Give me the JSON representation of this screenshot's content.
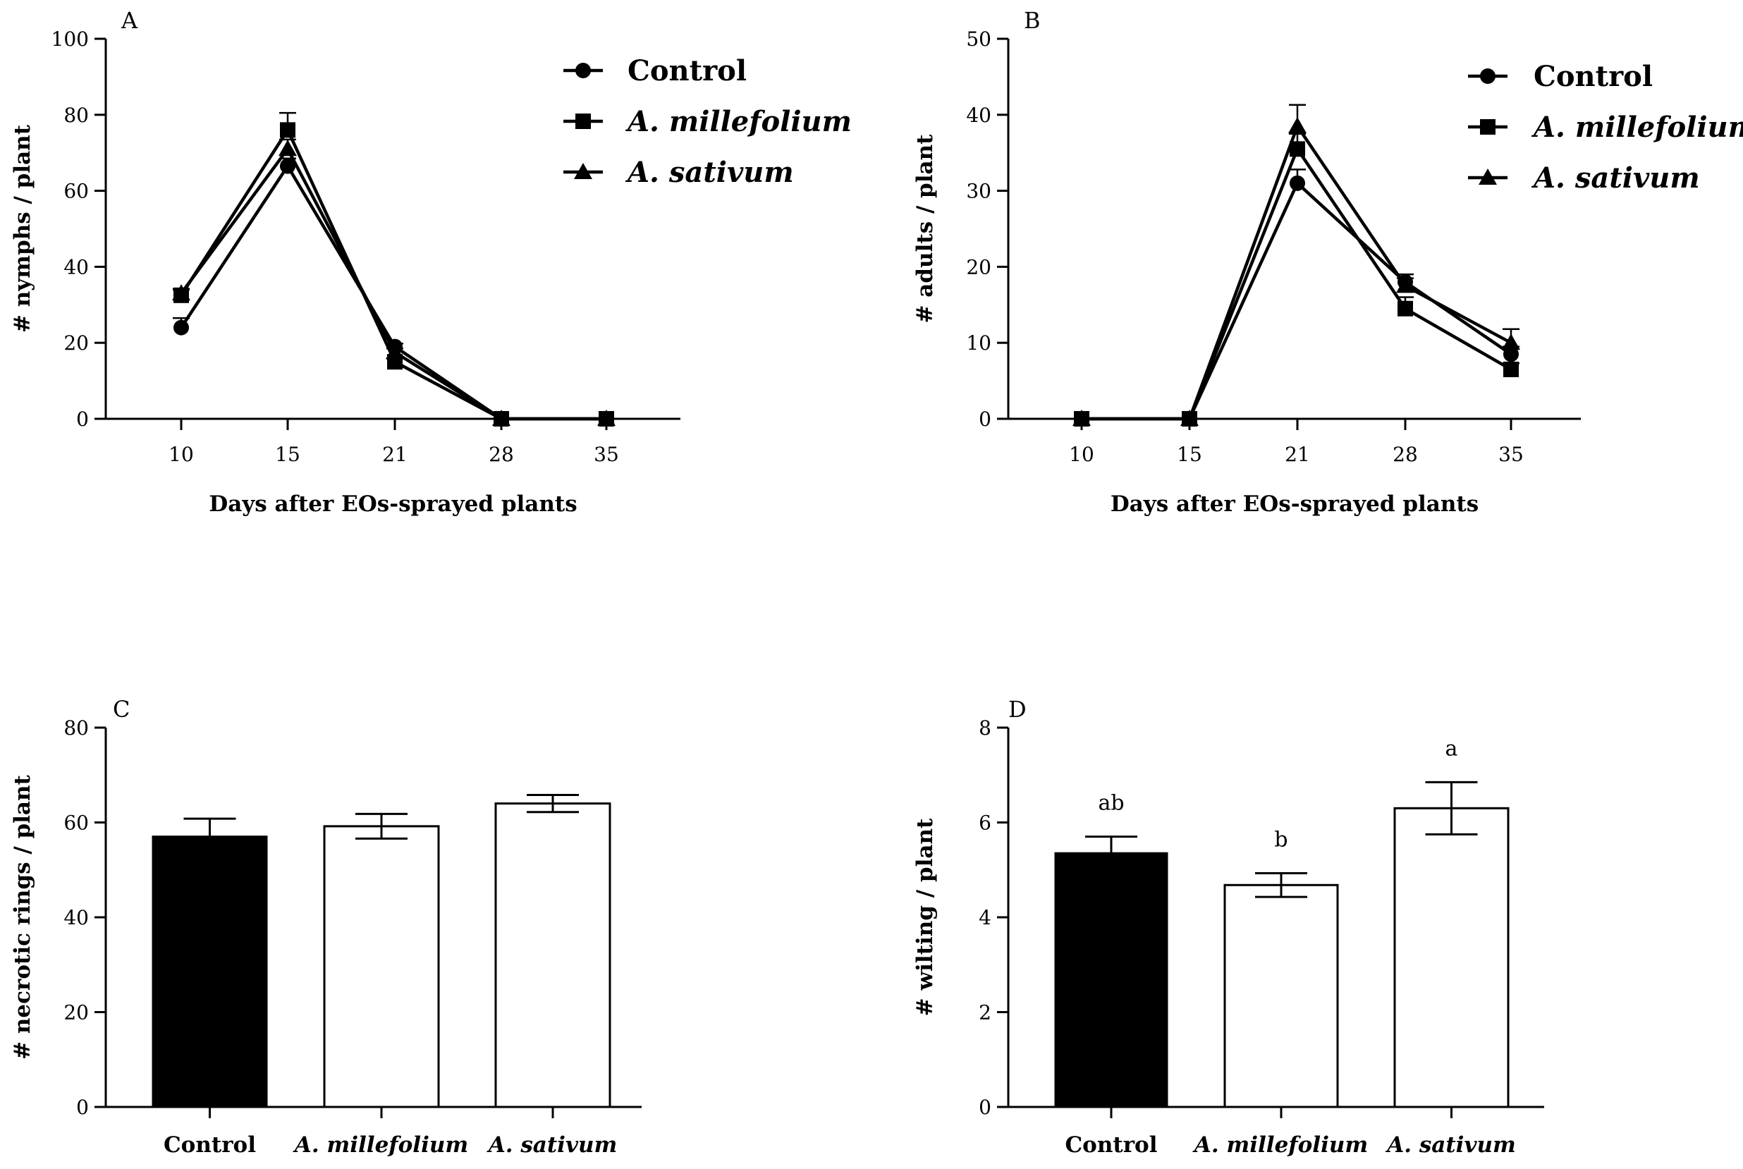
{
  "chart_data": [
    {
      "panel": "A",
      "type": "line",
      "xlabel": "Days after EOs-sprayed plants",
      "ylabel": "# nymphs / plant",
      "categories": [
        "10",
        "15",
        "21",
        "28",
        "35"
      ],
      "ylim": [
        0,
        100
      ],
      "yticks": [
        0,
        20,
        40,
        60,
        80,
        100
      ],
      "series": [
        {
          "name": "Control",
          "italic": false,
          "marker": "circle",
          "values": [
            24,
            66.5,
            19,
            0,
            0
          ],
          "errors": [
            2.5,
            2,
            0.8,
            0,
            0
          ]
        },
        {
          "name": "A. millefolium",
          "italic": true,
          "marker": "square",
          "values": [
            32.5,
            76,
            15,
            0,
            0
          ],
          "errors": [
            1.5,
            4.5,
            1,
            0,
            0
          ]
        },
        {
          "name": "A. sativum",
          "italic": true,
          "marker": "triangle",
          "values": [
            33,
            71,
            17.5,
            0,
            0
          ],
          "errors": [
            1.2,
            2.5,
            1,
            0,
            0
          ]
        }
      ]
    },
    {
      "panel": "B",
      "type": "line",
      "xlabel": "Days after EOs-sprayed plants",
      "ylabel": "# adults / plant",
      "categories": [
        "10",
        "15",
        "21",
        "28",
        "35"
      ],
      "ylim": [
        0,
        50
      ],
      "yticks": [
        0,
        10,
        20,
        30,
        40,
        50
      ],
      "series": [
        {
          "name": "Control",
          "italic": false,
          "marker": "circle",
          "values": [
            0,
            0,
            31,
            18,
            8.5
          ],
          "errors": [
            0,
            0,
            1.8,
            1,
            1
          ]
        },
        {
          "name": "A. millefolium",
          "italic": true,
          "marker": "square",
          "values": [
            0,
            0,
            35.5,
            14.5,
            6.5
          ],
          "errors": [
            0,
            0,
            2,
            1.5,
            0.8
          ]
        },
        {
          "name": "A. sativum",
          "italic": true,
          "marker": "triangle",
          "values": [
            0,
            0,
            38.5,
            17.5,
            10
          ],
          "errors": [
            0,
            0,
            2.8,
            1,
            1.8
          ]
        }
      ]
    },
    {
      "panel": "C",
      "type": "bar",
      "ylabel": "# necrotic rings / plant",
      "ylim": [
        0,
        80
      ],
      "yticks": [
        0,
        20,
        40,
        60,
        80
      ],
      "bars": [
        {
          "label": "Control",
          "italic": false,
          "value": 57,
          "error": 3.8,
          "fill": "#000000",
          "sig": ""
        },
        {
          "label": "A. millefolium",
          "italic": true,
          "value": 59.2,
          "error": 2.6,
          "fill": "#ffffff",
          "sig": ""
        },
        {
          "label": "A. sativum",
          "italic": true,
          "value": 64,
          "error": 1.8,
          "fill": "#ffffff",
          "sig": ""
        }
      ]
    },
    {
      "panel": "D",
      "type": "bar",
      "ylabel": "# wilting / plant",
      "ylim": [
        0,
        8
      ],
      "yticks": [
        0,
        2,
        4,
        6,
        8
      ],
      "bars": [
        {
          "label": "Control",
          "italic": false,
          "value": 5.35,
          "error": 0.35,
          "fill": "#000000",
          "sig": "ab"
        },
        {
          "label": "A. millefolium",
          "italic": true,
          "value": 4.68,
          "error": 0.25,
          "fill": "#ffffff",
          "sig": "b"
        },
        {
          "label": "A. sativum",
          "italic": true,
          "value": 6.3,
          "error": 0.55,
          "fill": "#ffffff",
          "sig": "a"
        }
      ]
    }
  ]
}
